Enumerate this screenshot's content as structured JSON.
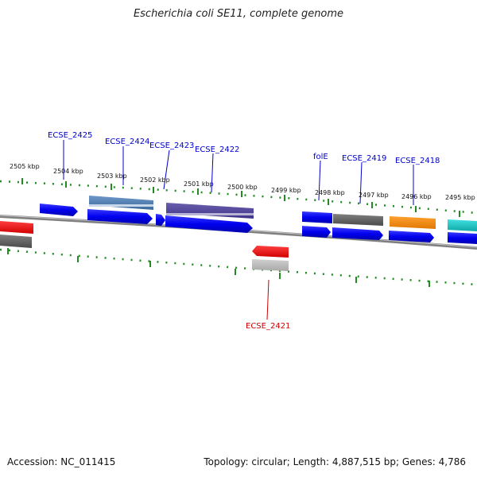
{
  "title": "Escherichia coli SE11, complete genome",
  "accession": "Accession: NC_011415",
  "topology": "Topology: circular; Length: 4,887,515 bp; Genes: 4,786",
  "colors": {
    "label_top": "#0000cc",
    "label_bottom": "#cc0000",
    "tick": "#228b22",
    "backbone": "#808080"
  },
  "ticks": [
    {
      "label": "2505 kbp"
    },
    {
      "label": "2504 kbp"
    },
    {
      "label": "2503 kbp"
    },
    {
      "label": "2502 kbp"
    },
    {
      "label": "2501 kbp"
    },
    {
      "label": "2500 kbp"
    },
    {
      "label": "2499 kbp"
    },
    {
      "label": "2498 kbp"
    },
    {
      "label": "2497 kbp"
    },
    {
      "label": "2496 kbp"
    },
    {
      "label": "2495 kbp"
    }
  ],
  "gene_labels": [
    {
      "name": "ECSE_2425"
    },
    {
      "name": "ECSE_2424"
    },
    {
      "name": "ECSE_2423"
    },
    {
      "name": "ECSE_2422"
    },
    {
      "name": "folE"
    },
    {
      "name": "ECSE_2419"
    },
    {
      "name": "ECSE_2418"
    },
    {
      "name": "ECSE_2421"
    }
  ]
}
